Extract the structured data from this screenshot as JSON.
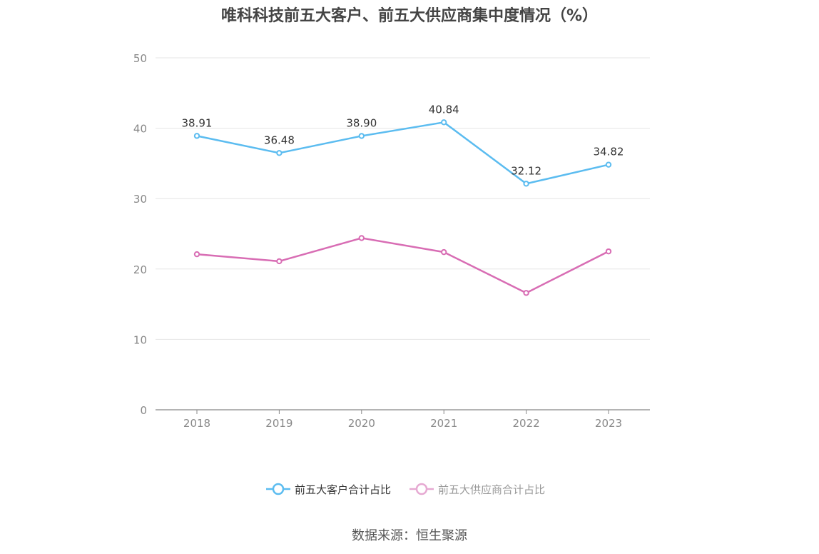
{
  "chart_data": {
    "type": "line",
    "title": "唯科科技前五大客户、前五大供应商集中度情况（%）",
    "categories": [
      "2018",
      "2019",
      "2020",
      "2021",
      "2022",
      "2023"
    ],
    "ylim": [
      0,
      50
    ],
    "yticks": [
      "0",
      "10",
      "20",
      "30",
      "40",
      "50"
    ],
    "grid": true,
    "legend_position": "bottom",
    "series": [
      {
        "name": "前五大客户合计占比",
        "values": [
          38.91,
          36.48,
          38.9,
          40.84,
          32.12,
          34.82
        ],
        "labels": [
          "38.91",
          "36.48",
          "38.90",
          "40.84",
          "32.12",
          "34.82"
        ],
        "color": "#5bbcf0"
      },
      {
        "name": "前五大供应商合计占比",
        "values": [
          22.1,
          21.1,
          24.4,
          22.4,
          16.6,
          22.5
        ],
        "color": "#d86db4"
      }
    ]
  },
  "source": "数据来源：恒生聚源"
}
